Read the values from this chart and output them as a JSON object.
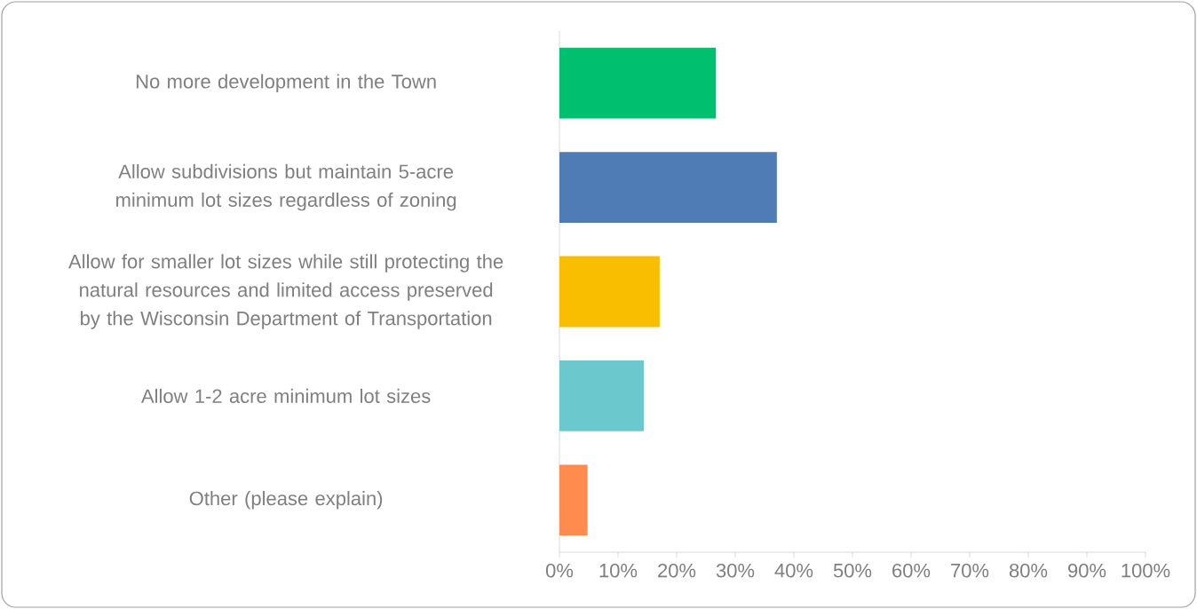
{
  "chart_data": {
    "type": "bar",
    "orientation": "horizontal",
    "categories": [
      "No more development in the Town",
      "Allow subdivisions but maintain 5-acre minimum lot sizes regardless of zoning",
      "Allow for smaller lot sizes while still protecting the natural resources and limited access preserved by the Wisconsin Department of Transportation",
      "Allow 1-2 acre minimum lot sizes",
      "Other (please explain)"
    ],
    "values": [
      26.7,
      37.1,
      17.1,
      14.4,
      4.8
    ],
    "colors": [
      "#00bf6f",
      "#507cb6",
      "#f9be00",
      "#6bc8cd",
      "#ff8b4f"
    ],
    "xlim": [
      0,
      100
    ],
    "xticks": [
      {
        "value": 0,
        "label": "0%"
      },
      {
        "value": 10,
        "label": "10%"
      },
      {
        "value": 20,
        "label": "20%"
      },
      {
        "value": 30,
        "label": "30%"
      },
      {
        "value": 40,
        "label": "40%"
      },
      {
        "value": 50,
        "label": "50%"
      },
      {
        "value": 60,
        "label": "60%"
      },
      {
        "value": 70,
        "label": "70%"
      },
      {
        "value": 80,
        "label": "80%"
      },
      {
        "value": 90,
        "label": "90%"
      },
      {
        "value": 100,
        "label": "100%"
      }
    ],
    "grid": false
  }
}
